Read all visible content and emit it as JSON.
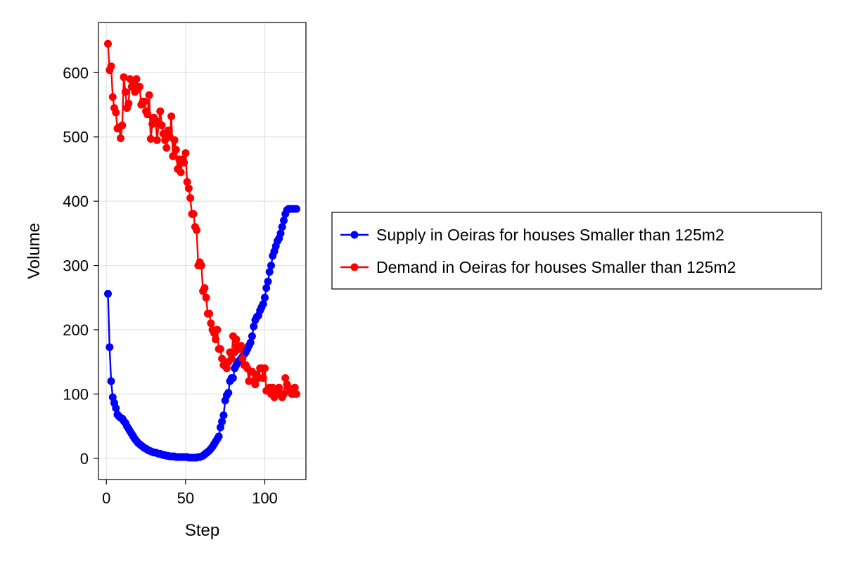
{
  "chart_data": {
    "type": "line",
    "xlabel": "Step",
    "ylabel": "Volume",
    "xlim": [
      -5,
      126
    ],
    "ylim": [
      -33,
      678
    ],
    "x_ticks": [
      0,
      50,
      100
    ],
    "y_ticks": [
      0,
      100,
      200,
      300,
      400,
      500,
      600
    ],
    "grid": true,
    "legend_position": "right",
    "series": [
      {
        "name": "Supply in Oeiras for houses Smaller than 125m2",
        "color": "#0000ff",
        "x": [
          1,
          2,
          3,
          4,
          5,
          6,
          7,
          8,
          9,
          10,
          11,
          12,
          13,
          14,
          15,
          16,
          17,
          18,
          19,
          20,
          21,
          22,
          23,
          24,
          25,
          26,
          27,
          28,
          29,
          30,
          31,
          32,
          33,
          34,
          35,
          36,
          37,
          38,
          39,
          40,
          41,
          42,
          43,
          44,
          45,
          46,
          47,
          48,
          49,
          50,
          51,
          52,
          53,
          54,
          55,
          56,
          57,
          58,
          59,
          60,
          61,
          62,
          63,
          64,
          65,
          66,
          67,
          68,
          69,
          70,
          71,
          72,
          73,
          74,
          75,
          76,
          77,
          78,
          79,
          80,
          81,
          82,
          83,
          84,
          85,
          86,
          87,
          88,
          89,
          90,
          91,
          92,
          93,
          94,
          95,
          96,
          97,
          98,
          99,
          100,
          101,
          102,
          103,
          104,
          105,
          106,
          107,
          108,
          109,
          110,
          111,
          112,
          113,
          114,
          115,
          116,
          117,
          118,
          119,
          120
        ],
        "y": [
          256,
          173,
          120,
          95,
          86,
          78,
          68,
          65,
          63,
          62,
          58,
          55,
          50,
          46,
          42,
          38,
          34,
          30,
          27,
          24,
          22,
          20,
          18,
          16,
          15,
          13,
          12,
          11,
          10,
          9,
          9,
          8,
          7,
          7,
          6,
          5,
          5,
          4,
          4,
          3,
          3,
          3,
          3,
          2,
          2,
          2,
          2,
          2,
          2,
          2,
          2,
          1,
          1,
          1,
          1,
          1,
          1,
          2,
          2,
          3,
          4,
          6,
          8,
          10,
          12,
          15,
          18,
          22,
          26,
          30,
          34,
          48,
          57,
          67,
          90,
          98,
          102,
          120,
          125,
          125,
          140,
          145,
          150,
          152,
          155,
          158,
          162,
          165,
          170,
          175,
          180,
          190,
          205,
          215,
          220,
          222,
          230,
          235,
          240,
          250,
          265,
          275,
          290,
          300,
          315,
          322,
          330,
          338,
          342,
          350,
          360,
          370,
          380,
          386,
          388,
          388,
          388,
          388,
          388,
          388
        ]
      },
      {
        "name": "Demand in Oeiras for houses Smaller than 125m2",
        "color": "#ff0000",
        "x": [
          1,
          2,
          3,
          4,
          5,
          6,
          7,
          8,
          9,
          10,
          11,
          12,
          13,
          14,
          15,
          16,
          17,
          18,
          19,
          20,
          21,
          22,
          23,
          24,
          25,
          26,
          27,
          28,
          29,
          30,
          31,
          32,
          33,
          34,
          35,
          36,
          37,
          38,
          39,
          40,
          41,
          42,
          43,
          44,
          45,
          46,
          47,
          48,
          49,
          50,
          51,
          52,
          53,
          54,
          55,
          56,
          57,
          58,
          59,
          60,
          61,
          62,
          63,
          64,
          65,
          66,
          67,
          68,
          69,
          70,
          71,
          72,
          73,
          74,
          75,
          76,
          77,
          78,
          79,
          80,
          81,
          82,
          83,
          84,
          85,
          86,
          87,
          88,
          89,
          90,
          91,
          92,
          93,
          94,
          95,
          96,
          97,
          98,
          99,
          100,
          101,
          102,
          103,
          104,
          105,
          106,
          107,
          108,
          109,
          110,
          111,
          112,
          113,
          114,
          115,
          116,
          117,
          118,
          119,
          120
        ],
        "y": [
          645,
          604,
          610,
          562,
          545,
          538,
          513,
          515,
          498,
          518,
          593,
          570,
          545,
          552,
          590,
          578,
          580,
          570,
          590,
          575,
          578,
          550,
          555,
          555,
          540,
          535,
          565,
          497,
          520,
          530,
          525,
          495,
          520,
          540,
          518,
          505,
          495,
          483,
          510,
          500,
          532,
          470,
          495,
          480,
          450,
          465,
          445,
          465,
          460,
          475,
          430,
          420,
          405,
          380,
          380,
          360,
          355,
          300,
          305,
          300,
          260,
          265,
          250,
          225,
          225,
          210,
          200,
          195,
          185,
          200,
          170,
          170,
          155,
          145,
          150,
          140,
          150,
          165,
          155,
          190,
          165,
          185,
          175,
          170,
          175,
          155,
          145,
          145,
          140,
          120,
          135,
          135,
          120,
          115,
          130,
          125,
          140,
          140,
          125,
          140,
          105,
          105,
          110,
          100,
          110,
          95,
          100,
          105,
          110,
          100,
          95,
          100,
          125,
          115,
          110,
          105,
          100,
          100,
          110,
          100
        ]
      }
    ]
  }
}
